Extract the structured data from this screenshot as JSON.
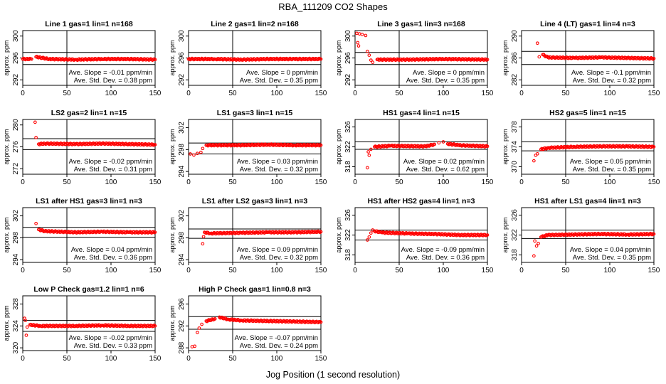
{
  "title": "RBA_111209  CO2 Shapes",
  "xlabel": "Jog Position (1 second resolution)",
  "chart_data": [
    {
      "type": "scatter",
      "title": "Line 1 gas=1 lin=1 n=168",
      "ylabel": "approx. ppm",
      "xlim": [
        0,
        150
      ],
      "ylim": [
        291,
        301
      ],
      "yticks": [
        292,
        296,
        300
      ],
      "xticks": [
        0,
        50,
        100,
        150
      ],
      "hlines": [
        297,
        294.8
      ],
      "vline": 50,
      "slope": "Ave. Slope = -0.01  ppm/min",
      "stddev": "Ave. Std. Dev. = 0.38  ppm",
      "points": [
        [
          0,
          295.8
        ],
        [
          10,
          295.8
        ],
        [
          15,
          296.2
        ],
        [
          30,
          295.8
        ],
        [
          60,
          295.7
        ],
        [
          90,
          295.8
        ],
        [
          120,
          295.8
        ],
        [
          150,
          295.7
        ]
      ]
    },
    {
      "type": "scatter",
      "title": "Line 2 gas=1 lin=2 n=168",
      "ylabel": "approx. ppm",
      "xlim": [
        0,
        150
      ],
      "ylim": [
        291,
        301
      ],
      "yticks": [
        292,
        296,
        300
      ],
      "xticks": [
        0,
        50,
        100,
        150
      ],
      "hlines": [
        297,
        294.8
      ],
      "vline": 50,
      "slope": "Ave. Slope = 0  ppm/min",
      "stddev": "Ave. Std. Dev. = 0.35  ppm",
      "points": [
        [
          0,
          295.8
        ],
        [
          30,
          295.8
        ],
        [
          60,
          295.7
        ],
        [
          90,
          295.8
        ],
        [
          120,
          295.8
        ],
        [
          150,
          295.8
        ]
      ]
    },
    {
      "type": "scatter",
      "title": "Line 3 gas=1 lin=3 n=168",
      "ylabel": "approx. ppm",
      "xlim": [
        0,
        150
      ],
      "ylim": [
        291,
        301
      ],
      "yticks": [
        292,
        296,
        300
      ],
      "xticks": [
        0,
        50,
        100,
        150
      ],
      "hlines": [
        297,
        294.8
      ],
      "vline": 50,
      "slope": "Ave. Slope = 0  ppm/min",
      "stddev": "Ave. Std. Dev. = 0.35  ppm",
      "points": [
        [
          2,
          300.5
        ],
        [
          5,
          300.4
        ],
        [
          8,
          300.3
        ],
        [
          12,
          300.1
        ],
        [
          3,
          298.8
        ],
        [
          4,
          298.2
        ],
        [
          14,
          297.2
        ],
        [
          16,
          296.5
        ],
        [
          18,
          295.6
        ],
        [
          20,
          295.2
        ],
        [
          25,
          295.7
        ],
        [
          60,
          295.7
        ],
        [
          100,
          295.8
        ],
        [
          150,
          295.7
        ]
      ]
    },
    {
      "type": "scatter",
      "title": "Line 4 (LT) gas=1 lin=4 n=3",
      "ylabel": "approx. ppm",
      "xlim": [
        0,
        150
      ],
      "ylim": [
        281,
        291
      ],
      "yticks": [
        282,
        286,
        290
      ],
      "xticks": [
        0,
        50,
        100,
        150
      ],
      "hlines": [
        287.2,
        284.8
      ],
      "vline": 50,
      "slope": "Ave. Slope = -0.1  ppm/min",
      "stddev": "Ave. Std. Dev. = 0.32  ppm",
      "points": [
        [
          18,
          288.7
        ],
        [
          20,
          286.2
        ],
        [
          24,
          286.6
        ],
        [
          30,
          286.1
        ],
        [
          60,
          286.0
        ],
        [
          90,
          286.1
        ],
        [
          120,
          286.0
        ],
        [
          150,
          285.9
        ]
      ]
    },
    {
      "type": "scatter",
      "title": "LS2 gas=2 lin=1 n=15",
      "ylabel": "approx. ppm",
      "xlim": [
        0,
        150
      ],
      "ylim": [
        271,
        281
      ],
      "yticks": [
        272,
        276,
        280
      ],
      "xticks": [
        0,
        50,
        100,
        150
      ],
      "hlines": [
        277.5,
        275.5
      ],
      "vline": 50,
      "slope": "Ave. Slope = -0.02  ppm/min",
      "stddev": "Ave. Std. Dev. = 0.31  ppm",
      "points": [
        [
          14,
          280.5
        ],
        [
          15,
          277.7
        ],
        [
          18,
          276.5
        ],
        [
          25,
          276.6
        ],
        [
          60,
          276.5
        ],
        [
          90,
          276.6
        ],
        [
          120,
          276.5
        ],
        [
          150,
          276.4
        ]
      ]
    },
    {
      "type": "scatter",
      "title": "LS1 gas=3 lin=1 n=15",
      "ylabel": "approx. ppm",
      "xlim": [
        0,
        150
      ],
      "ylim": [
        293.5,
        303.5
      ],
      "yticks": [
        294,
        298,
        302
      ],
      "xticks": [
        0,
        50,
        100,
        150
      ],
      "hlines": [
        299.2,
        297.2
      ],
      "vline": 50,
      "slope": "Ave. Slope = 0.03  ppm/min",
      "stddev": "Ave. Std. Dev. = 0.32  ppm",
      "points": [
        [
          2,
          297.2
        ],
        [
          6,
          297.0
        ],
        [
          10,
          297.3
        ],
        [
          14,
          297.5
        ],
        [
          16,
          298.2
        ],
        [
          20,
          298.8
        ],
        [
          30,
          298.8
        ],
        [
          60,
          298.8
        ],
        [
          90,
          298.9
        ],
        [
          120,
          298.8
        ],
        [
          150,
          298.8
        ]
      ]
    },
    {
      "type": "scatter",
      "title": "HS1 gas=4 lin=1 n=15",
      "ylabel": "approx. ppm",
      "xlim": [
        0,
        150
      ],
      "ylim": [
        316.5,
        327.5
      ],
      "yticks": [
        318,
        322,
        326
      ],
      "xticks": [
        0,
        50,
        100,
        150
      ],
      "hlines": [
        323,
        321.5
      ],
      "vline": 50,
      "slope": "Ave. Slope = 0.02  ppm/min",
      "stddev": "Ave. Std. Dev. = 0.62  ppm",
      "points": [
        [
          14,
          317.8
        ],
        [
          15,
          321.0
        ],
        [
          16,
          320.3
        ],
        [
          18,
          321.5
        ],
        [
          22,
          322.0
        ],
        [
          40,
          322.2
        ],
        [
          80,
          322.1
        ],
        [
          90,
          322.5
        ],
        [
          95,
          322.8
        ],
        [
          100,
          323.0
        ],
        [
          105,
          322.6
        ],
        [
          120,
          322.3
        ],
        [
          150,
          322.1
        ]
      ]
    },
    {
      "type": "scatter",
      "title": "HS2 gas=5 lin=1 n=15",
      "ylabel": "approx. ppm",
      "xlim": [
        0,
        150
      ],
      "ylim": [
        368.5,
        379.5
      ],
      "yticks": [
        370,
        374,
        378
      ],
      "xticks": [
        0,
        50,
        100,
        150
      ],
      "hlines": [
        375,
        373.2
      ],
      "vline": 50,
      "slope": "Ave. Slope = 0.05  ppm/min",
      "stddev": "Ave. Std. Dev. = 0.35  ppm",
      "points": [
        [
          14,
          371.2
        ],
        [
          16,
          372.3
        ],
        [
          18,
          372.6
        ],
        [
          22,
          373.5
        ],
        [
          30,
          373.8
        ],
        [
          60,
          374.0
        ],
        [
          90,
          374.1
        ],
        [
          120,
          374.1
        ],
        [
          150,
          374.0
        ]
      ]
    },
    {
      "type": "scatter",
      "title": "LS1 after HS1 gas=3 lin=1 n=3",
      "ylabel": "approx. ppm",
      "xlim": [
        0,
        150
      ],
      "ylim": [
        293.5,
        303.5
      ],
      "yticks": [
        294,
        298,
        302
      ],
      "xticks": [
        0,
        50,
        100,
        150
      ],
      "hlines": [
        299.9,
        298.1
      ],
      "vline": 50,
      "slope": "Ave. Slope = 0.04  ppm/min",
      "stddev": "Ave. Std. Dev. = 0.36  ppm",
      "points": [
        [
          15,
          300.6
        ],
        [
          18,
          299.5
        ],
        [
          25,
          299.2
        ],
        [
          60,
          299.0
        ],
        [
          90,
          299.1
        ],
        [
          120,
          299.0
        ],
        [
          150,
          299.0
        ]
      ]
    },
    {
      "type": "scatter",
      "title": "LS1 after LS2 gas=3 lin=1 n=3",
      "ylabel": "approx. ppm",
      "xlim": [
        0,
        150
      ],
      "ylim": [
        293.5,
        303.5
      ],
      "yticks": [
        294,
        298,
        302
      ],
      "xticks": [
        0,
        50,
        100,
        150
      ],
      "hlines": [
        299.6,
        297.9
      ],
      "vline": 50,
      "slope": "Ave. Slope = 0.09  ppm/min",
      "stddev": "Ave. Std. Dev. = 0.32  ppm",
      "points": [
        [
          16,
          296.9
        ],
        [
          17,
          298.2
        ],
        [
          18,
          299.0
        ],
        [
          25,
          298.8
        ],
        [
          60,
          298.9
        ],
        [
          90,
          299.0
        ],
        [
          120,
          299.0
        ],
        [
          150,
          299.1
        ]
      ]
    },
    {
      "type": "scatter",
      "title": "HS1 after HS2 gas=4 lin=1 n=3",
      "ylabel": "approx. ppm",
      "xlim": [
        0,
        150
      ],
      "ylim": [
        316.5,
        327.5
      ],
      "yticks": [
        318,
        322,
        326
      ],
      "xticks": [
        0,
        50,
        100,
        150
      ],
      "hlines": [
        323,
        321
      ],
      "vline": 50,
      "slope": "Ave. Slope = -0.09  ppm/min",
      "stddev": "Ave. Std. Dev. = 0.36  ppm",
      "points": [
        [
          14,
          321.0
        ],
        [
          16,
          321.6
        ],
        [
          18,
          322.4
        ],
        [
          20,
          323.0
        ],
        [
          22,
          322.8
        ],
        [
          30,
          322.5
        ],
        [
          60,
          322.3
        ],
        [
          90,
          322.2
        ],
        [
          120,
          322.0
        ],
        [
          150,
          322.0
        ]
      ]
    },
    {
      "type": "scatter",
      "title": "HS1 after LS1 gas=4 lin=1 n=3",
      "ylabel": "approx. ppm",
      "xlim": [
        0,
        150
      ],
      "ylim": [
        316.5,
        327.5
      ],
      "yticks": [
        318,
        322,
        326
      ],
      "xticks": [
        0,
        50,
        100,
        150
      ],
      "hlines": [
        323,
        321.3
      ],
      "vline": 50,
      "slope": "Ave. Slope = 0.04  ppm/min",
      "stddev": "Ave. Std. Dev. = 0.35  ppm",
      "points": [
        [
          14,
          317.8
        ],
        [
          15,
          320.8
        ],
        [
          17,
          319.8
        ],
        [
          19,
          320.3
        ],
        [
          22,
          321.6
        ],
        [
          30,
          322.0
        ],
        [
          60,
          322.1
        ],
        [
          90,
          322.2
        ],
        [
          120,
          322.1
        ],
        [
          150,
          322.2
        ]
      ]
    },
    {
      "type": "scatter",
      "title": "Low P Check gas=1.2 lin=1 n=6",
      "ylabel": "approx. ppm",
      "xlim": [
        0,
        150
      ],
      "ylim": [
        319.5,
        329.5
      ],
      "yticks": [
        320,
        324,
        328
      ],
      "xticks": [
        0,
        50,
        100,
        150
      ],
      "hlines": [
        325,
        323
      ],
      "vline": 50,
      "slope": "Ave. Slope = -0.02  ppm/min",
      "stddev": "Ave. Std. Dev. = 0.33  ppm",
      "points": [
        [
          2,
          325.4
        ],
        [
          3,
          325.0
        ],
        [
          4,
          322.3
        ],
        [
          5,
          323.8
        ],
        [
          8,
          324.2
        ],
        [
          20,
          324.0
        ],
        [
          60,
          324.0
        ],
        [
          90,
          324.1
        ],
        [
          120,
          324.0
        ],
        [
          150,
          324.0
        ]
      ]
    },
    {
      "type": "scatter",
      "title": "High P Check gas=1 lin=0.8 n=3",
      "ylabel": "approx. ppm",
      "xlim": [
        0,
        150
      ],
      "ylim": [
        287.5,
        297.5
      ],
      "yticks": [
        288,
        292,
        296
      ],
      "xticks": [
        0,
        50,
        100,
        150
      ],
      "hlines": [
        293.7,
        291.4
      ],
      "vline": 50,
      "slope": "Ave. Slope = -0.07  ppm/min",
      "stddev": "Ave. Std. Dev. = 0.24  ppm",
      "points": [
        [
          4,
          288.2
        ],
        [
          7,
          288.3
        ],
        [
          10,
          290.8
        ],
        [
          12,
          291.6
        ],
        [
          15,
          292.3
        ],
        [
          20,
          292.9
        ],
        [
          30,
          293.3
        ],
        [
          35,
          293.6
        ],
        [
          45,
          293.2
        ],
        [
          60,
          293.0
        ],
        [
          90,
          292.9
        ],
        [
          120,
          292.8
        ],
        [
          150,
          292.7
        ]
      ]
    }
  ]
}
